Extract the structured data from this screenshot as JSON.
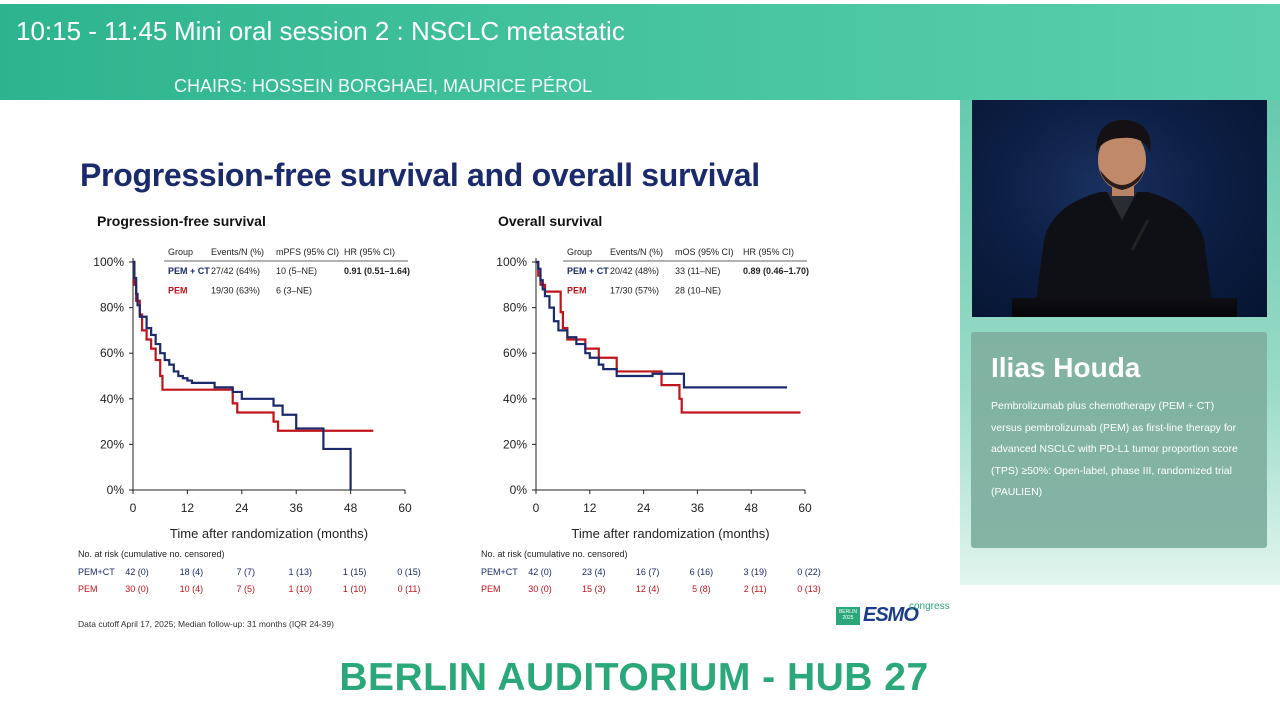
{
  "header": {
    "time": "10:15 - 11:45",
    "title": "Mini oral session 2 : NSCLC metastatic",
    "chairs": "CHAIRS: HOSSEIN BORGHAEI, MAURICE PÉROL"
  },
  "speaker": {
    "name": "Ilias Houda",
    "talk_title": "Pembrolizumab plus chemotherapy (PEM + CT) versus pembrolizumab (PEM) as first-line therapy for advanced NSCLC with PD-L1 tumor proportion score (TPS) ≥50%: Open-label, phase III, randomized trial (PAULIEN)"
  },
  "slide": {
    "title": "Progression-free survival and overall survival",
    "footnote": "Data cutoff April 17, 2025; Median follow-up: 31 months (IQR 24-39)",
    "colors": {
      "pem_ct": "#1a2a6c",
      "pem": "#c0141b"
    }
  },
  "logo": {
    "badge": "BERLIN 2025",
    "word": "ESMO",
    "suffix": "congress"
  },
  "location": "BERLIN AUDITORIUM - HUB 27",
  "chart_data": [
    {
      "type": "line",
      "title": "Progression-free survival",
      "xlabel": "Time after randomization (months)",
      "ylabel": "",
      "xlim": [
        0,
        60
      ],
      "ylim": [
        0,
        100
      ],
      "x_ticks": [
        "0",
        "12",
        "24",
        "36",
        "48",
        "60"
      ],
      "y_ticks": [
        "0%",
        "20%",
        "40%",
        "60%",
        "80%",
        "100%"
      ],
      "table": {
        "headers": [
          "Group",
          "Events/N (%)",
          "mPFS (95% CI)",
          "HR (95% CI)"
        ],
        "rows": [
          [
            "PEM + CT",
            "27/42 (64%)",
            "10 (5–NE)",
            "0.91 (0.51–1.64)"
          ],
          [
            "PEM",
            "19/30 (63%)",
            "6 (3–NE)",
            ""
          ]
        ]
      },
      "series": [
        {
          "name": "PEM + CT",
          "color": "#1a2a6c",
          "points": [
            [
              0,
              100
            ],
            [
              0.3,
              93
            ],
            [
              0.7,
              86
            ],
            [
              1,
              81
            ],
            [
              1.5,
              76
            ],
            [
              3,
              71
            ],
            [
              4,
              68
            ],
            [
              5,
              64
            ],
            [
              6,
              60
            ],
            [
              7,
              57
            ],
            [
              8,
              55
            ],
            [
              9,
              52
            ],
            [
              10,
              50
            ],
            [
              11,
              49
            ],
            [
              12,
              48
            ],
            [
              13,
              47
            ],
            [
              18,
              45
            ],
            [
              20,
              45
            ],
            [
              22,
              43
            ],
            [
              24,
              40
            ],
            [
              30,
              40
            ],
            [
              31,
              37
            ],
            [
              33,
              33
            ],
            [
              36,
              27
            ],
            [
              42,
              27
            ],
            [
              42,
              18
            ],
            [
              48,
              18
            ],
            [
              48,
              0
            ]
          ]
        },
        {
          "name": "PEM",
          "color": "#c0141b",
          "points": [
            [
              0,
              100
            ],
            [
              0.3,
              90
            ],
            [
              0.7,
              83
            ],
            [
              1.5,
              77
            ],
            [
              2,
              70
            ],
            [
              3,
              66
            ],
            [
              4,
              62
            ],
            [
              5,
              57
            ],
            [
              6,
              50
            ],
            [
              6.5,
              44
            ],
            [
              18,
              44
            ],
            [
              20,
              44
            ],
            [
              22,
              38
            ],
            [
              23,
              34
            ],
            [
              30,
              34
            ],
            [
              31,
              30
            ],
            [
              32,
              26
            ],
            [
              53,
              26
            ]
          ]
        }
      ],
      "at_risk": {
        "label": "No. at risk (cumulative no. censored)",
        "rows": [
          {
            "group": "PEM+CT",
            "values": [
              "42 (0)",
              "18 (4)",
              "7 (7)",
              "1 (13)",
              "1 (15)",
              "0 (15)"
            ]
          },
          {
            "group": "PEM",
            "values": [
              "30 (0)",
              "10 (4)",
              "7 (5)",
              "1 (10)",
              "1 (10)",
              "0 (11)"
            ]
          }
        ]
      }
    },
    {
      "type": "line",
      "title": "Overall survival",
      "xlabel": "Time after randomization (months)",
      "ylabel": "",
      "xlim": [
        0,
        60
      ],
      "ylim": [
        0,
        100
      ],
      "x_ticks": [
        "0",
        "12",
        "24",
        "36",
        "48",
        "60"
      ],
      "y_ticks": [
        "0%",
        "20%",
        "40%",
        "60%",
        "80%",
        "100%"
      ],
      "table": {
        "headers": [
          "Group",
          "Events/N (%)",
          "mOS (95% CI)",
          "HR (95% CI)"
        ],
        "rows": [
          [
            "PEM + CT",
            "20/42 (48%)",
            "33 (11–NE)",
            "0.89 (0.46–1.70)"
          ],
          [
            "PEM",
            "17/30 (57%)",
            "28 (10–NE)",
            ""
          ]
        ]
      },
      "series": [
        {
          "name": "PEM + CT",
          "color": "#1a2a6c",
          "points": [
            [
              0,
              100
            ],
            [
              0.5,
              97
            ],
            [
              1,
              92
            ],
            [
              1.5,
              88
            ],
            [
              2,
              85
            ],
            [
              3,
              80
            ],
            [
              4,
              74
            ],
            [
              5,
              70
            ],
            [
              7,
              67
            ],
            [
              9,
              64
            ],
            [
              11,
              60
            ],
            [
              12,
              58
            ],
            [
              14,
              55
            ],
            [
              15,
              53
            ],
            [
              18,
              50
            ],
            [
              25,
              50
            ],
            [
              26,
              51
            ],
            [
              33,
              51
            ],
            [
              33,
              45
            ],
            [
              56,
              45
            ]
          ]
        },
        {
          "name": "PEM",
          "color": "#c0141b",
          "points": [
            [
              0,
              100
            ],
            [
              0.5,
              94
            ],
            [
              1,
              90
            ],
            [
              2,
              87
            ],
            [
              5,
              87
            ],
            [
              5.5,
              78
            ],
            [
              6,
              71
            ],
            [
              7,
              66
            ],
            [
              10,
              66
            ],
            [
              11,
              62
            ],
            [
              14,
              58
            ],
            [
              18,
              58
            ],
            [
              18,
              52
            ],
            [
              27,
              52
            ],
            [
              28,
              46
            ],
            [
              31,
              46
            ],
            [
              32,
              40
            ],
            [
              32.5,
              34
            ],
            [
              59,
              34
            ]
          ]
        }
      ],
      "at_risk": {
        "label": "No. at risk (cumulative no. censored)",
        "rows": [
          {
            "group": "PEM+CT",
            "values": [
              "42 (0)",
              "23 (4)",
              "16 (7)",
              "6 (16)",
              "3 (19)",
              "0 (22)"
            ]
          },
          {
            "group": "PEM",
            "values": [
              "30 (0)",
              "15 (3)",
              "12 (4)",
              "5 (8)",
              "2 (11)",
              "0 (13)"
            ]
          }
        ]
      }
    }
  ]
}
